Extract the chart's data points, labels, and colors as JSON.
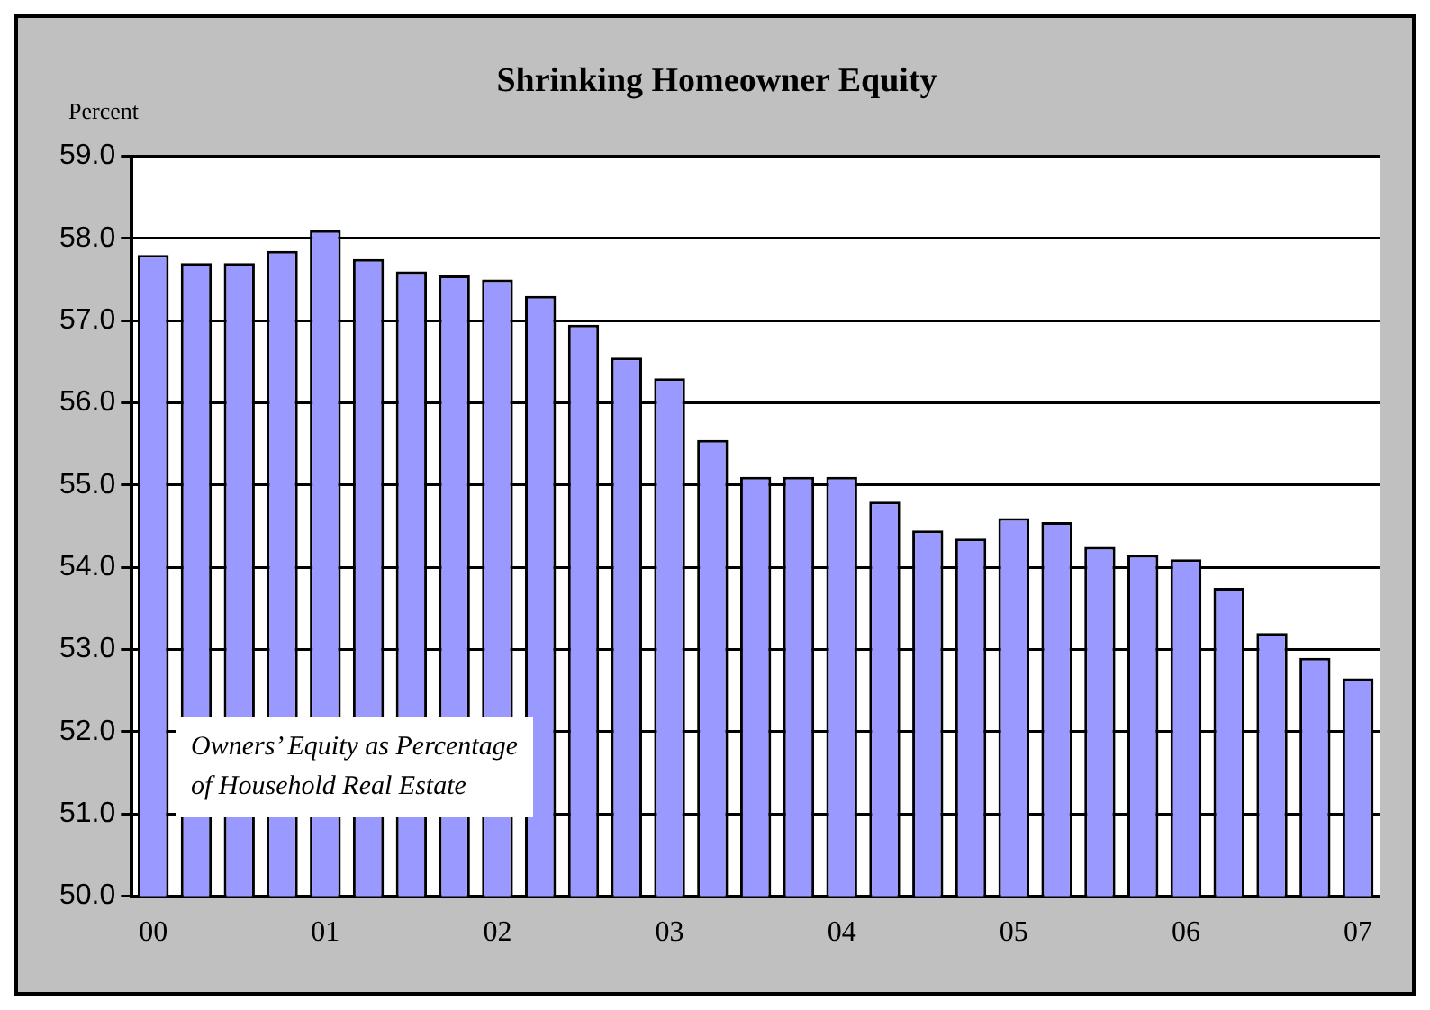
{
  "chart_data": {
    "type": "bar",
    "title": "Shrinking Homeowner Equity",
    "ylabel": "Percent",
    "categories": [
      "00",
      null,
      null,
      null,
      "01",
      null,
      null,
      null,
      "02",
      null,
      null,
      null,
      "03",
      null,
      null,
      null,
      "04",
      null,
      null,
      null,
      "05",
      null,
      null,
      null,
      "06",
      null,
      null,
      null,
      "07"
    ],
    "values": [
      57.8,
      57.7,
      57.7,
      57.85,
      58.1,
      57.75,
      57.6,
      57.55,
      57.5,
      57.3,
      56.95,
      56.55,
      56.3,
      55.55,
      55.1,
      55.1,
      55.1,
      54.8,
      54.45,
      54.35,
      54.6,
      54.55,
      54.25,
      54.15,
      54.1,
      53.75,
      53.2,
      52.9,
      52.65
    ],
    "color": "#9999ff",
    "ylim": [
      50,
      59
    ],
    "yticks": [
      {
        "value": 50,
        "label": "50.0"
      },
      {
        "value": 51,
        "label": "51.0"
      },
      {
        "value": 52,
        "label": "52.0"
      },
      {
        "value": 53,
        "label": "53.0"
      },
      {
        "value": 54,
        "label": "54.0"
      },
      {
        "value": 55,
        "label": "55.0"
      },
      {
        "value": 56,
        "label": "56.0"
      },
      {
        "value": 57,
        "label": "57.0"
      },
      {
        "value": 58,
        "label": "58.0"
      },
      {
        "value": 59,
        "label": "59.0"
      }
    ],
    "grid": "y",
    "legend": false,
    "annotations": [
      "Owners’ Equity as Percentage\nof Household Real Estate"
    ]
  }
}
